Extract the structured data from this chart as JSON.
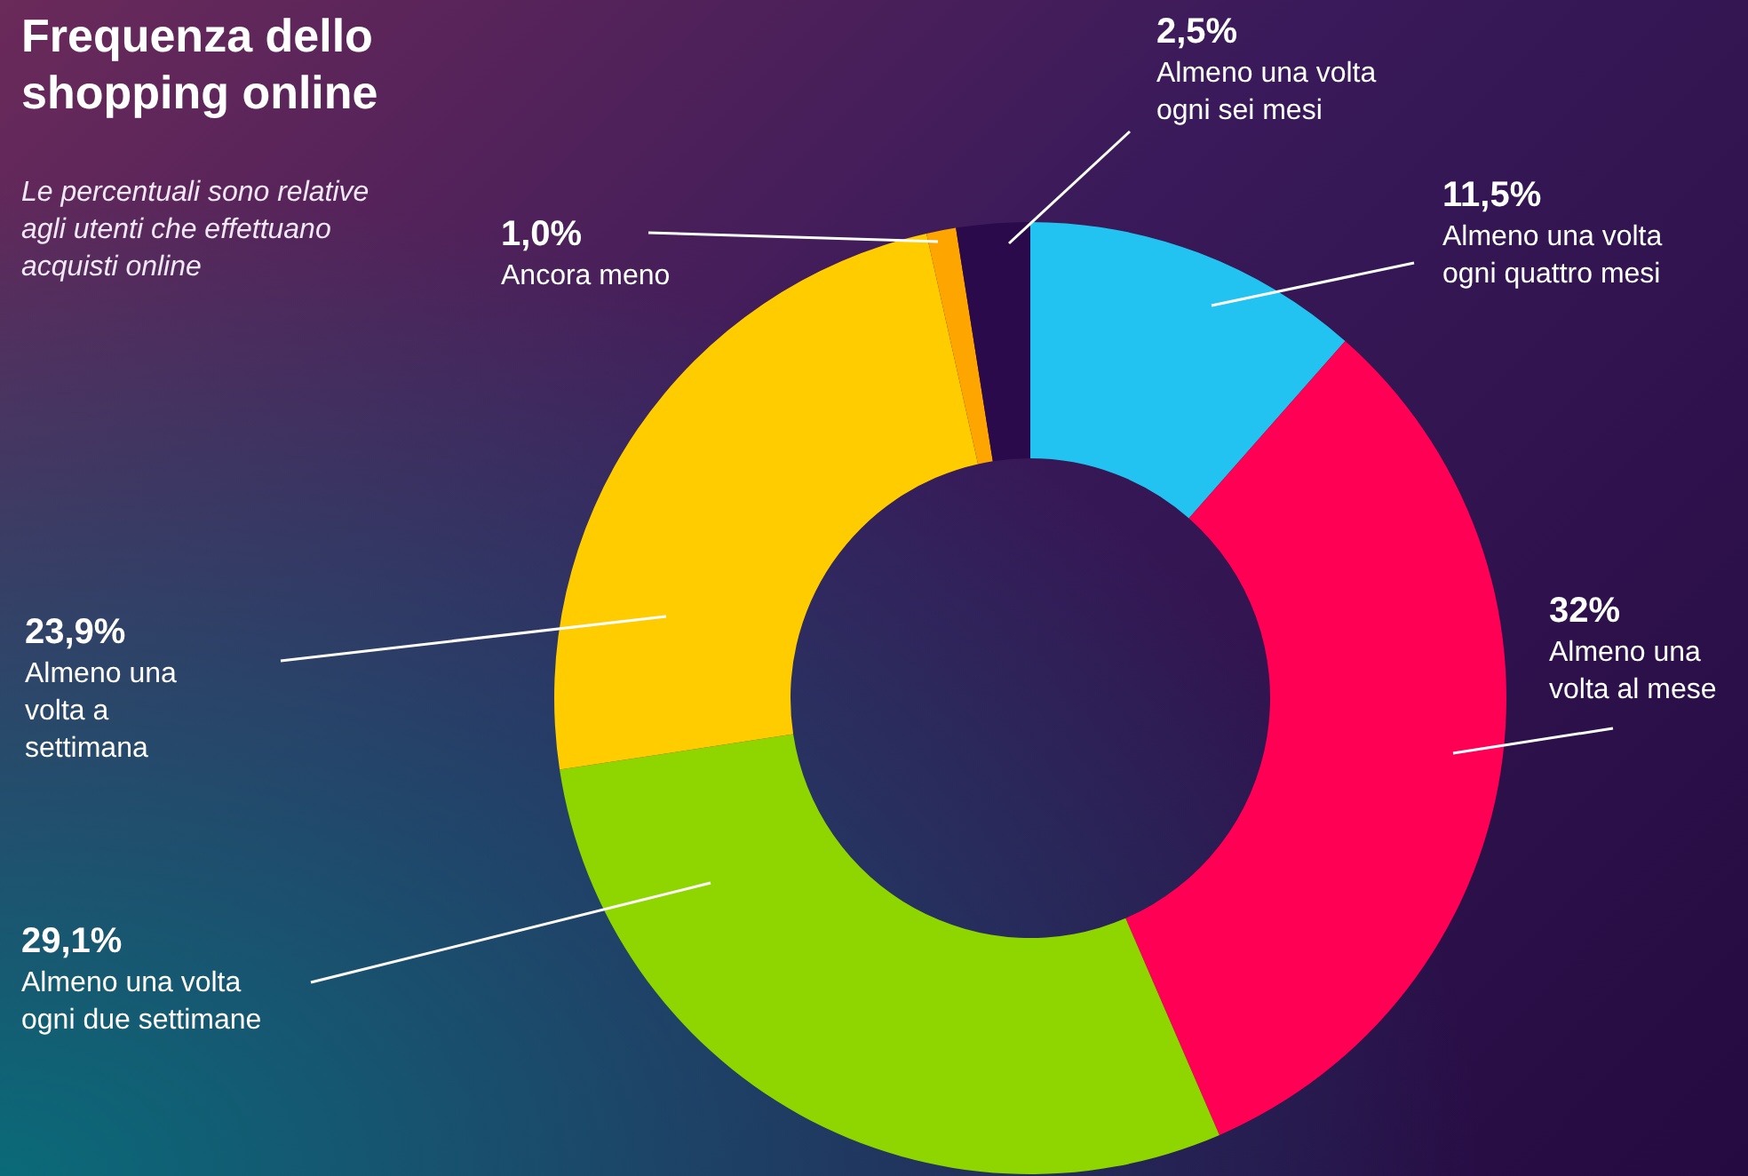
{
  "chart_data": {
    "type": "donut",
    "title": "Frequenza dello shopping online",
    "subtitle": "Le percentuali sono relative agli utenti che effettuano acquisti online",
    "categories": [
      "Almeno una volta ogni quattro mesi",
      "Almeno una volta al mese",
      "Almeno una volta ogni due settimane",
      "Almeno una volta a settimana",
      "Ancora meno",
      "Almeno una volta ogni sei mesi"
    ],
    "values": [
      11.5,
      32,
      29.1,
      23.9,
      1.0,
      2.5
    ],
    "value_labels": [
      "11,5%",
      "32%",
      "29,1%",
      "23,9%",
      "1,0%",
      "2,5%"
    ],
    "colors": [
      "#22c3f0",
      "#ff0055",
      "#8fd600",
      "#ffcc00",
      "#ffa500",
      "#2a0a4a"
    ],
    "legend": false
  }
}
